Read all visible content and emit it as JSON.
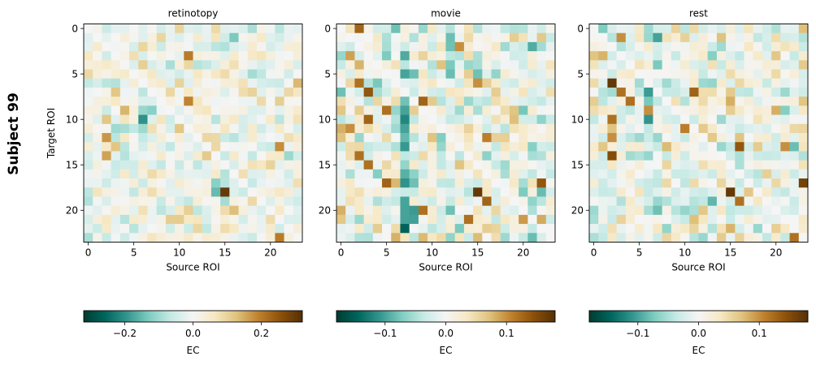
{
  "figure": {
    "suptitle": "Subject 99"
  },
  "chart_data": [
    {
      "type": "heatmap",
      "title": "retinotopy",
      "xlabel": "Source ROI",
      "ylabel": "Target ROI",
      "n": 24,
      "xticks": [
        0,
        5,
        10,
        15,
        20
      ],
      "yticks": [
        0,
        5,
        10,
        15,
        20
      ],
      "seed": 11,
      "noise_scale": 0.06,
      "strong_cells": [
        [
          18,
          15,
          0.3
        ],
        [
          3,
          11,
          0.2
        ],
        [
          8,
          11,
          0.19
        ],
        [
          12,
          2,
          0.17
        ],
        [
          14,
          2,
          0.16
        ],
        [
          13,
          21,
          0.18
        ],
        [
          20,
          16,
          0.13
        ],
        [
          23,
          21,
          0.2
        ],
        [
          9,
          4,
          0.14
        ],
        [
          11,
          10,
          0.12
        ],
        [
          7,
          3,
          0.12
        ],
        [
          6,
          10,
          0.1
        ],
        [
          15,
          20,
          0.1
        ],
        [
          10,
          2,
          0.12
        ],
        [
          21,
          10,
          0.11
        ]
      ],
      "negative_cells": [
        [
          10,
          6,
          -0.2
        ],
        [
          9,
          7,
          -0.12
        ],
        [
          17,
          14,
          -0.12
        ],
        [
          18,
          14,
          -0.15
        ],
        [
          0,
          18,
          -0.09
        ],
        [
          11,
          6,
          -0.1
        ],
        [
          16,
          15,
          -0.08
        ]
      ],
      "column_bias": [],
      "colorbar": {
        "label": "EC",
        "vmin": -0.32,
        "vmax": 0.32,
        "ticks": [
          -0.2,
          0.0,
          0.2
        ],
        "tick_labels": [
          "−0.2",
          "0.0",
          "0.2"
        ]
      }
    },
    {
      "type": "heatmap",
      "title": "movie",
      "xlabel": "Source ROI",
      "ylabel": "",
      "n": 24,
      "xticks": [
        0,
        5,
        10,
        15,
        20
      ],
      "yticks": [
        0,
        5,
        10,
        15,
        20
      ],
      "seed": 23,
      "noise_scale": 0.045,
      "strong_cells": [
        [
          18,
          15,
          0.17
        ],
        [
          7,
          3,
          0.14
        ],
        [
          8,
          9,
          0.13
        ],
        [
          6,
          2,
          0.12
        ],
        [
          9,
          5,
          0.12
        ],
        [
          10,
          3,
          0.13
        ],
        [
          14,
          2,
          0.12
        ],
        [
          15,
          3,
          0.12
        ],
        [
          17,
          5,
          0.13
        ],
        [
          19,
          16,
          0.13
        ],
        [
          21,
          14,
          0.12
        ],
        [
          20,
          9,
          0.12
        ],
        [
          12,
          16,
          0.11
        ],
        [
          17,
          22,
          0.14
        ],
        [
          0,
          2,
          0.13
        ],
        [
          3,
          1,
          0.09
        ],
        [
          6,
          15,
          0.1
        ],
        [
          4,
          2,
          0.08
        ],
        [
          11,
          1,
          0.1
        ]
      ],
      "negative_cells": [
        [
          5,
          7,
          -0.1
        ],
        [
          10,
          7,
          -0.12
        ],
        [
          11,
          7,
          -0.1
        ],
        [
          9,
          7,
          -0.1
        ],
        [
          20,
          7,
          -0.1
        ],
        [
          21,
          7,
          -0.1
        ],
        [
          20,
          12,
          -0.08
        ],
        [
          0,
          6,
          -0.08
        ],
        [
          16,
          4,
          -0.07
        ]
      ],
      "column_bias": [
        [
          7,
          -0.05
        ],
        [
          8,
          -0.025
        ],
        [
          12,
          -0.02
        ]
      ],
      "colorbar": {
        "label": "EC",
        "vmin": -0.18,
        "vmax": 0.18,
        "ticks": [
          -0.1,
          0.0,
          0.1
        ],
        "tick_labels": [
          "−0.1",
          "0.0",
          "0.1"
        ]
      }
    },
    {
      "type": "heatmap",
      "title": "rest",
      "xlabel": "Source ROI",
      "ylabel": "",
      "n": 24,
      "xticks": [
        0,
        5,
        10,
        15,
        20
      ],
      "yticks": [
        0,
        5,
        10,
        15,
        20
      ],
      "seed": 37,
      "noise_scale": 0.04,
      "strong_cells": [
        [
          6,
          2,
          0.17
        ],
        [
          18,
          15,
          0.17
        ],
        [
          13,
          16,
          0.14
        ],
        [
          7,
          3,
          0.12
        ],
        [
          8,
          4,
          0.12
        ],
        [
          14,
          2,
          0.15
        ],
        [
          10,
          2,
          0.12
        ],
        [
          12,
          2,
          0.1
        ],
        [
          9,
          6,
          0.1
        ],
        [
          7,
          11,
          0.13
        ],
        [
          11,
          10,
          0.11
        ],
        [
          17,
          23,
          0.16
        ],
        [
          19,
          16,
          0.12
        ],
        [
          23,
          22,
          0.12
        ],
        [
          1,
          3,
          0.1
        ],
        [
          13,
          21,
          0.1
        ],
        [
          3,
          1,
          0.08
        ],
        [
          22,
          15,
          0.08
        ]
      ],
      "negative_cells": [
        [
          10,
          6,
          -0.11
        ],
        [
          12,
          7,
          -0.06
        ],
        [
          19,
          7,
          -0.06
        ],
        [
          20,
          11,
          -0.05
        ],
        [
          13,
          14,
          -0.06
        ]
      ],
      "column_bias": [
        [
          6,
          -0.03
        ],
        [
          7,
          -0.025
        ]
      ],
      "colorbar": {
        "label": "EC",
        "vmin": -0.18,
        "vmax": 0.18,
        "ticks": [
          -0.1,
          0.0,
          0.1
        ],
        "tick_labels": [
          "−0.1",
          "0.0",
          "0.1"
        ]
      }
    }
  ]
}
